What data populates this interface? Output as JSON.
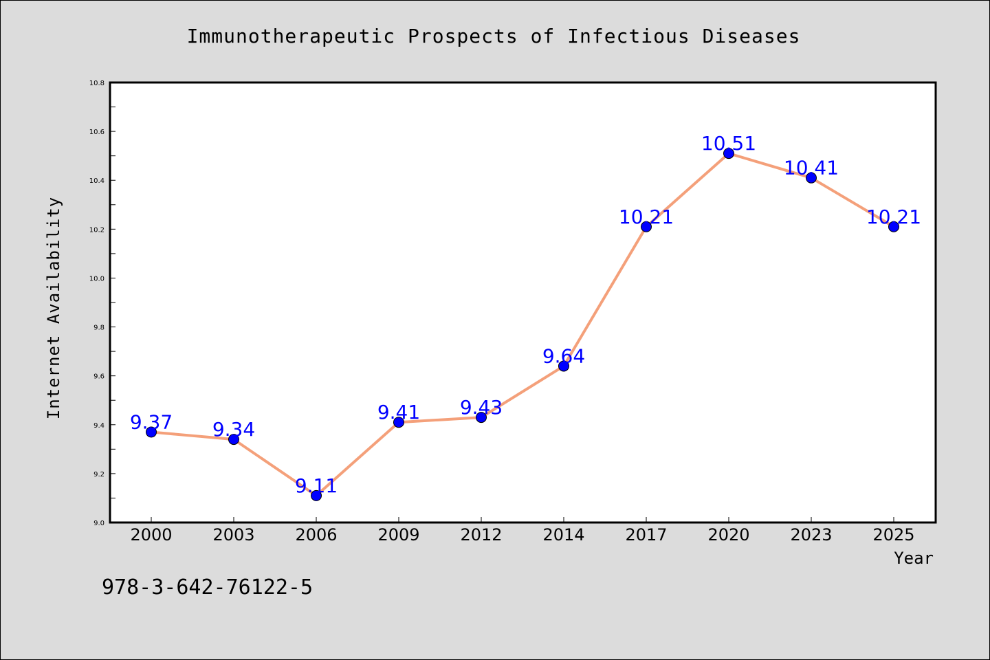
{
  "chart_data": {
    "type": "line",
    "title": "Immunotherapeutic Prospects of Infectious Diseases",
    "xlabel": "Year",
    "ylabel": "Internet Availability",
    "categories": [
      "2000",
      "2003",
      "2006",
      "2009",
      "2012",
      "2014",
      "2017",
      "2020",
      "2023",
      "2025"
    ],
    "series": [
      {
        "values": [
          9.37,
          9.34,
          9.11,
          9.41,
          9.43,
          9.64,
          10.21,
          10.51,
          10.41,
          10.21
        ],
        "labels": [
          "9.37",
          "9.34",
          "9.11",
          "9.41",
          "9.43",
          "9.64",
          "10.21",
          "10.51",
          "10.41",
          "10.21"
        ],
        "line_color": "#f4a07a",
        "marker_color": "#0000ff"
      }
    ],
    "ylim": [
      9.0,
      10.8
    ],
    "yticks": [
      "9.0",
      "9.2",
      "9.4",
      "9.6",
      "9.8",
      "10.0",
      "10.2",
      "10.4",
      "10.6",
      "10.8"
    ],
    "grid": false,
    "data_label_color": "#0000ff"
  },
  "footer": {
    "isbn": "978-3-642-76122-5"
  }
}
